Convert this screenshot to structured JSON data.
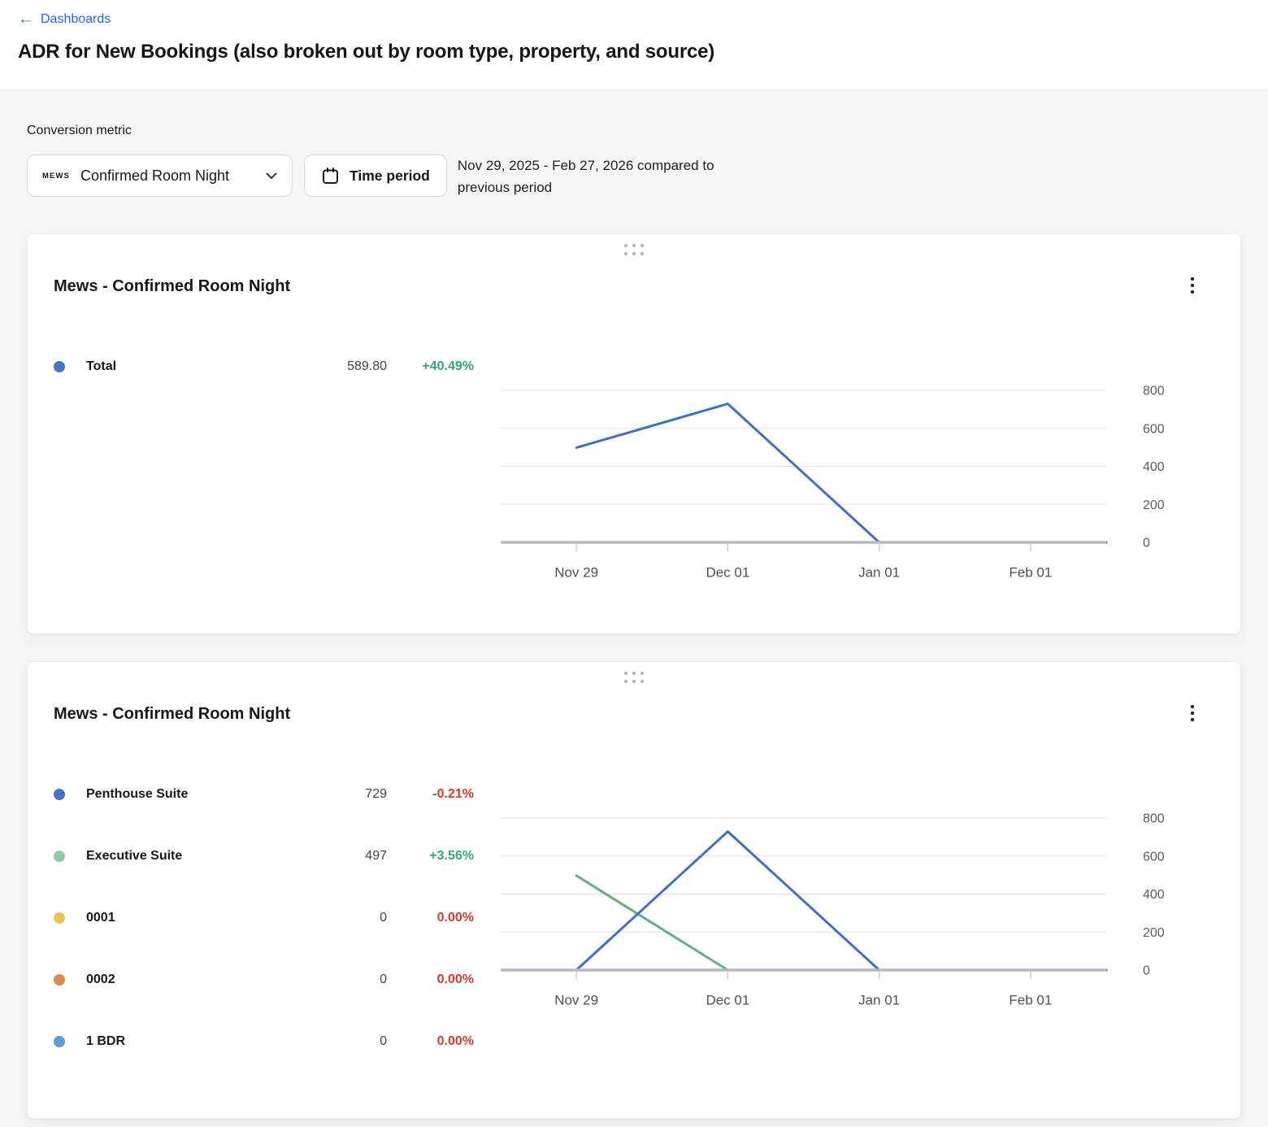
{
  "page": {
    "back_link_label": "Dashboards",
    "title": "ADR for New Bookings (also broken out by room type, property, and source)"
  },
  "filters": {
    "conversion_metric_label": "Conversion metric",
    "metric_dropdown": {
      "brand": "MEWS",
      "value": "Confirmed Room Night"
    },
    "time_period_label": "Time period",
    "period_summary_line1": "Nov 29, 2025 - Feb 27, 2026 compared to",
    "period_summary_line2": "previous period"
  },
  "icons": {
    "back_arrow": "←",
    "chevron_down": "chevron-down",
    "calendar": "calendar-outline",
    "drag_handle": "six-dot-grid",
    "kebab": "three-dot-vertical-menu"
  },
  "colors": {
    "link_blue": "#2563eb",
    "positive_green": "#35a571",
    "negative_red": "#cd3d2e",
    "gridline": "#dde1e6",
    "axis_line": "#b3bac4",
    "axis_tick": "#c9ced6",
    "x_label_text": "#4a5057",
    "y_label_text": "#565c64"
  },
  "chart_data": [
    {
      "type": "line",
      "title": "Mews - Confirmed Room Night",
      "categories": [
        "Nov 29",
        "Dec 01",
        "Jan 01",
        "Feb 01"
      ],
      "xlabel": "",
      "ylabel": "",
      "ylim": [
        0,
        800
      ],
      "yticks": [
        0,
        200,
        400,
        600,
        800
      ],
      "grid": true,
      "legend_position": "left",
      "series": [
        {
          "name": "Total",
          "dot_color": "#4472c4",
          "line_color": "#4170c0",
          "values": [
            498,
            729,
            0,
            0
          ],
          "display_value": "589.80",
          "change": "+40.49%",
          "change_positive": true
        }
      ]
    },
    {
      "type": "line",
      "title": "Mews - Confirmed Room Night",
      "categories": [
        "Nov 29",
        "Dec 01",
        "Jan 01",
        "Feb 01"
      ],
      "xlabel": "",
      "ylabel": "",
      "ylim": [
        0,
        800
      ],
      "yticks": [
        0,
        200,
        400,
        600,
        800
      ],
      "grid": true,
      "legend_position": "left",
      "series": [
        {
          "name": "Penthouse Suite",
          "dot_color": "#4472c4",
          "line_color": "#4170c0",
          "values": [
            0,
            729,
            0,
            0
          ],
          "display_value": "729",
          "change": "-0.21%",
          "change_positive": false
        },
        {
          "name": "Executive Suite",
          "dot_color": "#8fcbaa",
          "line_color": "#67ae85",
          "values": [
            497,
            0,
            0,
            0
          ],
          "display_value": "497",
          "change": "+3.56%",
          "change_positive": true
        },
        {
          "name": "0001",
          "dot_color": "#e9c45c",
          "line_color": "#e9c45c",
          "values": [
            0,
            0,
            0,
            0
          ],
          "display_value": "0",
          "change": "0.00%",
          "change_positive": false
        },
        {
          "name": "0002",
          "dot_color": "#dc8a4f",
          "line_color": "#dc8a4f",
          "values": [
            0,
            0,
            0,
            0
          ],
          "display_value": "0",
          "change": "0.00%",
          "change_positive": false
        },
        {
          "name": "1 BDR",
          "dot_color": "#5b9bd8",
          "line_color": "#5b9bd8",
          "values": [
            0,
            0,
            0,
            0
          ],
          "display_value": "0",
          "change": "0.00%",
          "change_positive": false
        }
      ]
    }
  ]
}
